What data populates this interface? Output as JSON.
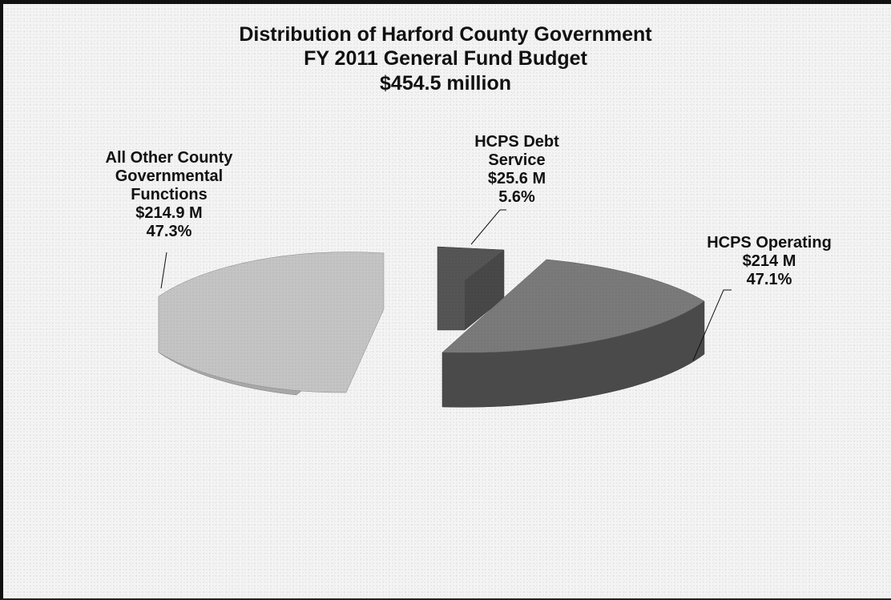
{
  "chart_data": {
    "type": "pie",
    "title": "Distribution of Harford County Government",
    "subtitle": "FY 2011 General Fund Budget",
    "total_label": "$454.5 million",
    "slices": [
      {
        "lines": [
          "All Other County",
          "Governmental",
          "Functions"
        ],
        "amount_label": "$214.9 M",
        "value": 214.9,
        "percent": 47.3,
        "percent_label": "47.3%",
        "color": "#c4c4c4"
      },
      {
        "lines": [
          "HCPS Debt",
          "Service"
        ],
        "amount_label": "$25.6 M",
        "value": 25.6,
        "percent": 5.6,
        "percent_label": "5.6%",
        "color": "#555555"
      },
      {
        "lines": [
          "HCPS Operating"
        ],
        "amount_label": "$214 M",
        "value": 214,
        "percent": 47.1,
        "percent_label": "47.1%",
        "color": "#7a7a7a"
      }
    ]
  }
}
